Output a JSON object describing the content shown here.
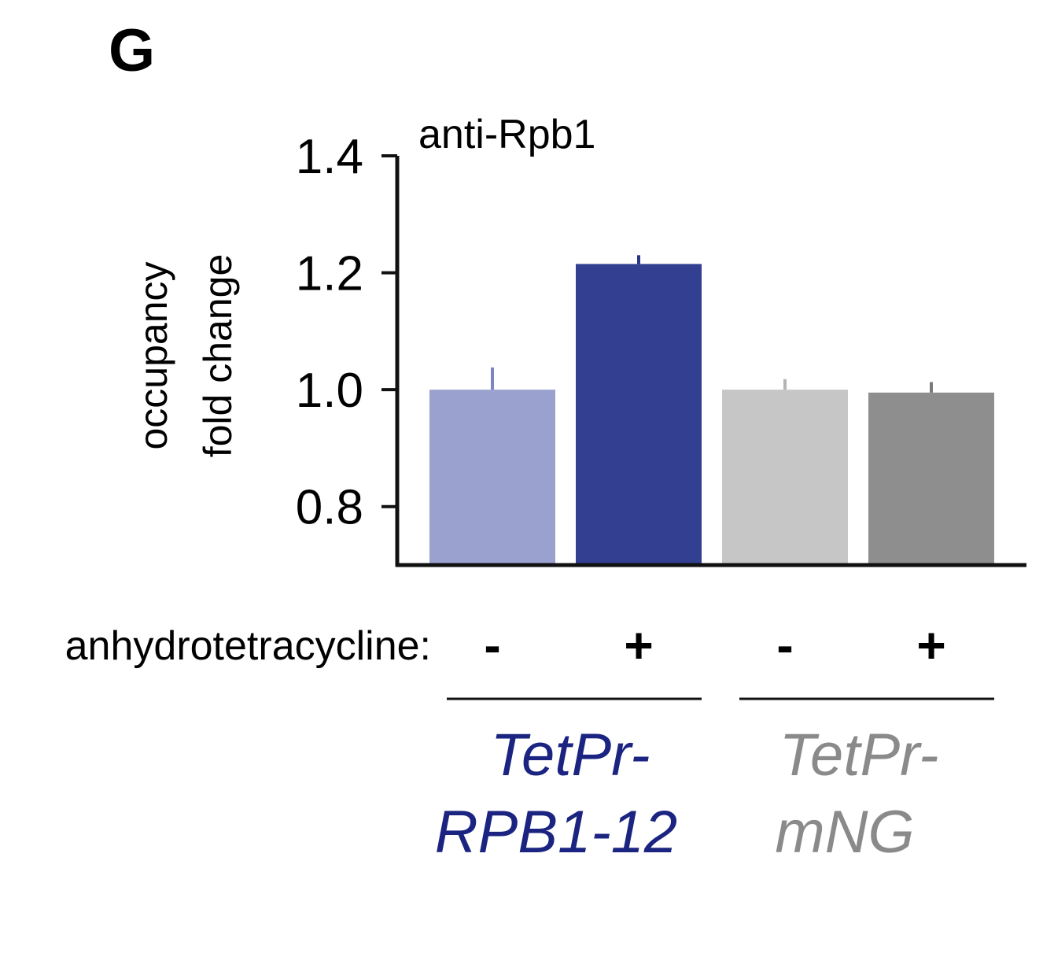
{
  "panel_label": "G",
  "chart_data": {
    "type": "bar",
    "title": "anti-Rpb1",
    "ylabel_lines": [
      "occupancy",
      "fold change"
    ],
    "ylim": [
      0.7,
      1.4
    ],
    "yticks": [
      0.8,
      1.0,
      1.2,
      1.4
    ],
    "ytick_labels": [
      "0.8",
      "1.0",
      "1.2",
      "1.4"
    ],
    "condition_label": "anhydrotetracycline:",
    "categories": [
      "-",
      "+",
      "-",
      "+"
    ],
    "values": [
      1.0,
      1.215,
      1.0,
      0.995
    ],
    "errors": [
      0.038,
      0.015,
      0.018,
      0.018
    ],
    "bar_colors": [
      "#9aa1cf",
      "#333f91",
      "#c6c6c6",
      "#8e8e8e"
    ],
    "error_colors": [
      "#7d86c4",
      "#2a3585",
      "#b4b4b4",
      "#7a7a7a"
    ],
    "groups": [
      {
        "lines": [
          "TetPr-",
          "RPB1-12"
        ],
        "color": "#1b2480"
      },
      {
        "lines": [
          "TetPr-",
          "mNG"
        ],
        "color": "#8a8a8a"
      }
    ]
  }
}
